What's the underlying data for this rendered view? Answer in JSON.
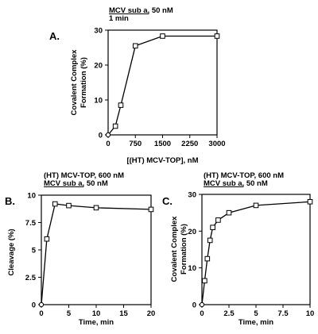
{
  "chart_data": [
    {
      "type": "line",
      "panel": "A.",
      "conditions": [
        "MCV sub a, 50 nM",
        "1 min"
      ],
      "underlined_prefix": "MCV sub a",
      "xlabel": "[(HT) MCV-TOP], nM",
      "ylabel": [
        "Covalent Complex",
        "Formation (%)"
      ],
      "xlim": [
        0,
        3000
      ],
      "ylim": [
        0,
        30
      ],
      "xticks": [
        0,
        750,
        1500,
        2250,
        3000
      ],
      "xtick_labels": [
        "0",
        "750",
        "1500",
        "2250",
        "3000"
      ],
      "yticks": [
        0,
        10,
        20,
        30
      ],
      "ytick_labels": [
        "0",
        "10",
        "20",
        "30"
      ],
      "grid": false,
      "legend": "none",
      "x": [
        0,
        200,
        350,
        750,
        1500,
        3000
      ],
      "y": [
        0,
        2.5,
        8.5,
        25.5,
        28.3,
        28.3
      ]
    },
    {
      "type": "line",
      "panel": "B.",
      "conditions": [
        "(HT) MCV-TOP, 600 nM",
        "MCV sub a, 50 nM"
      ],
      "underlined_prefix": "MCV sub a",
      "xlabel": "Time, min",
      "ylabel": [
        "Cleavage (%)"
      ],
      "xlim": [
        0,
        20
      ],
      "ylim": [
        0,
        10
      ],
      "xticks": [
        0,
        5,
        10,
        15,
        20
      ],
      "xtick_labels": [
        "0",
        "5",
        "10",
        "15",
        "20"
      ],
      "yticks": [
        0,
        2.5,
        5,
        7.5,
        10
      ],
      "ytick_labels": [
        "0",
        "2.5",
        "5",
        "7.5",
        "10"
      ],
      "grid": false,
      "legend": "none",
      "x": [
        0,
        1,
        2.5,
        5,
        10,
        20
      ],
      "y": [
        0,
        6,
        9.2,
        9.05,
        8.85,
        8.7
      ]
    },
    {
      "type": "line",
      "panel": "C.",
      "conditions": [
        "(HT) MCV-TOP, 600 nM",
        "MCV sub a, 50 nM"
      ],
      "underlined_prefix": "MCV sub a",
      "xlabel": "Time, min",
      "ylabel": [
        "Covalent Complex",
        "Formation (%)"
      ],
      "xlim": [
        0,
        10
      ],
      "ylim": [
        0,
        30
      ],
      "xticks": [
        0,
        2.5,
        5,
        7.5,
        10
      ],
      "xtick_labels": [
        "0",
        "2.5",
        "5",
        "7.5",
        "10"
      ],
      "yticks": [
        0,
        10,
        20,
        30
      ],
      "ytick_labels": [
        "0",
        "10",
        "20",
        "30"
      ],
      "grid": false,
      "legend": "none",
      "x": [
        0,
        0.25,
        0.5,
        0.75,
        1,
        1.5,
        2.5,
        5,
        10
      ],
      "y": [
        0,
        6.5,
        12.5,
        17.5,
        21,
        23,
        25,
        27,
        28
      ]
    }
  ]
}
